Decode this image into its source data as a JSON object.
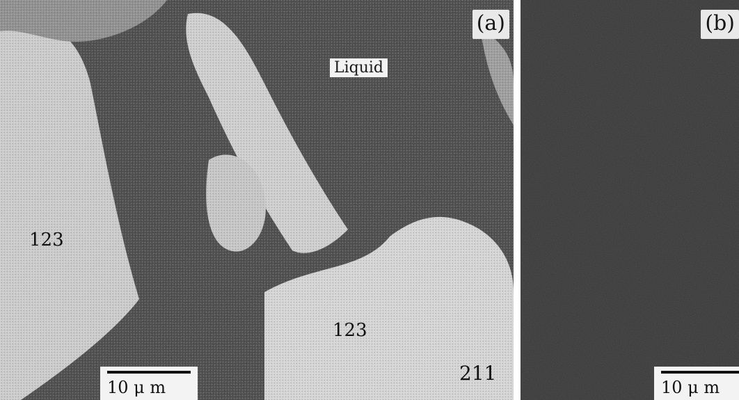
{
  "panel_a": {
    "label": "(a)",
    "phases": {
      "liquid": "Liquid",
      "left_123": "123",
      "center_123": "123",
      "bottom_211": "211"
    },
    "scale_bar": "10 μ m"
  },
  "panel_b": {
    "label": "(b)",
    "scale_bar": "10 μ m"
  },
  "colors": {
    "dark_region": "#3a3a3a",
    "light_region": "#d8d8d8",
    "background": "#ffffff"
  }
}
